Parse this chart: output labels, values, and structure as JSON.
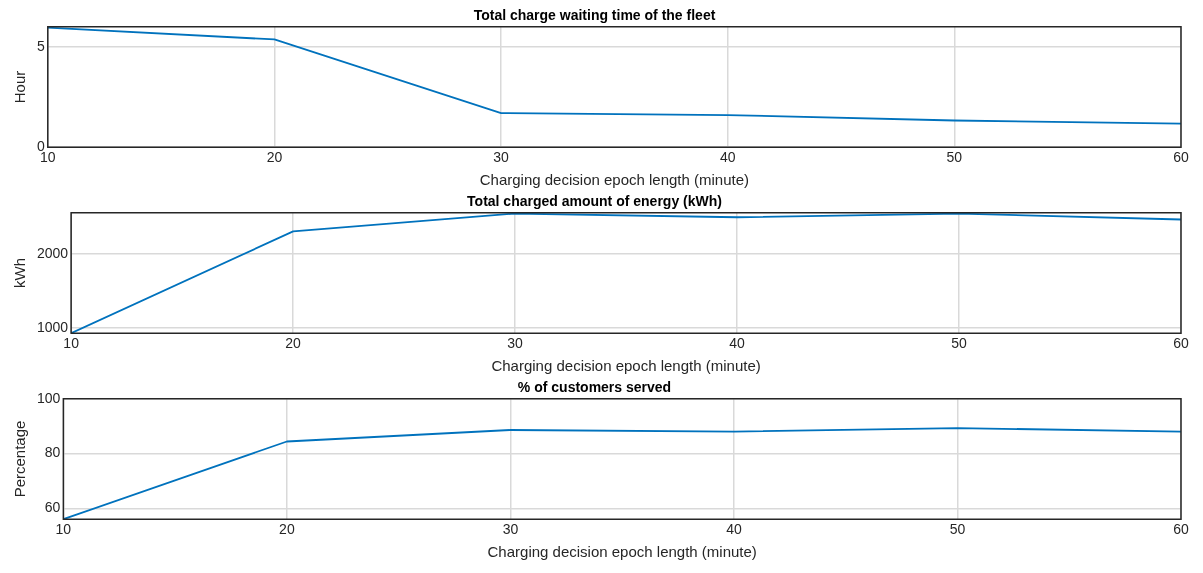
{
  "chart_data": [
    {
      "type": "line",
      "title": "Total charge waiting time of the fleet",
      "xlabel": "Charging decision epoch length (minute)",
      "ylabel": "Hour",
      "x": [
        10,
        20,
        30,
        40,
        50,
        60
      ],
      "series": [
        {
          "color": "#0072bd",
          "values": [
            5.96,
            5.37,
            1.7,
            1.6,
            1.33,
            1.17
          ]
        }
      ],
      "xlim": [
        10,
        60
      ],
      "xticks": [
        10,
        20,
        30,
        40,
        50,
        60
      ],
      "ylim": [
        0,
        6
      ],
      "yticks": [
        0,
        5
      ],
      "grid": true,
      "marker": "none"
    },
    {
      "type": "line",
      "title": "Total charged amount of energy (kWh)",
      "xlabel": "Charging decision epoch length (minute)",
      "ylabel": "kWh",
      "x": [
        10,
        20,
        30,
        40,
        50,
        60
      ],
      "series": [
        {
          "color": "#0072bd",
          "values": [
            930,
            2300,
            2540,
            2490,
            2540,
            2460
          ]
        }
      ],
      "xlim": [
        10,
        60
      ],
      "xticks": [
        10,
        20,
        30,
        40,
        50,
        60
      ],
      "ylim": [
        930,
        2550
      ],
      "yticks": [
        1000,
        2000
      ],
      "grid": true,
      "marker": "none"
    },
    {
      "type": "line",
      "title": "% of customers served",
      "xlabel": "Charging decision epoch length (minute)",
      "ylabel": "Percentage",
      "x": [
        10,
        20,
        30,
        40,
        50,
        60
      ],
      "series": [
        {
          "color": "#0072bd",
          "values": [
            56,
            84.4,
            88.6,
            88,
            89.3,
            88
          ]
        }
      ],
      "xlim": [
        10,
        60
      ],
      "xticks": [
        10,
        20,
        30,
        40,
        50,
        60
      ],
      "ylim": [
        56,
        100
      ],
      "yticks": [
        60,
        80,
        100
      ],
      "grid": true,
      "marker": "none"
    }
  ]
}
